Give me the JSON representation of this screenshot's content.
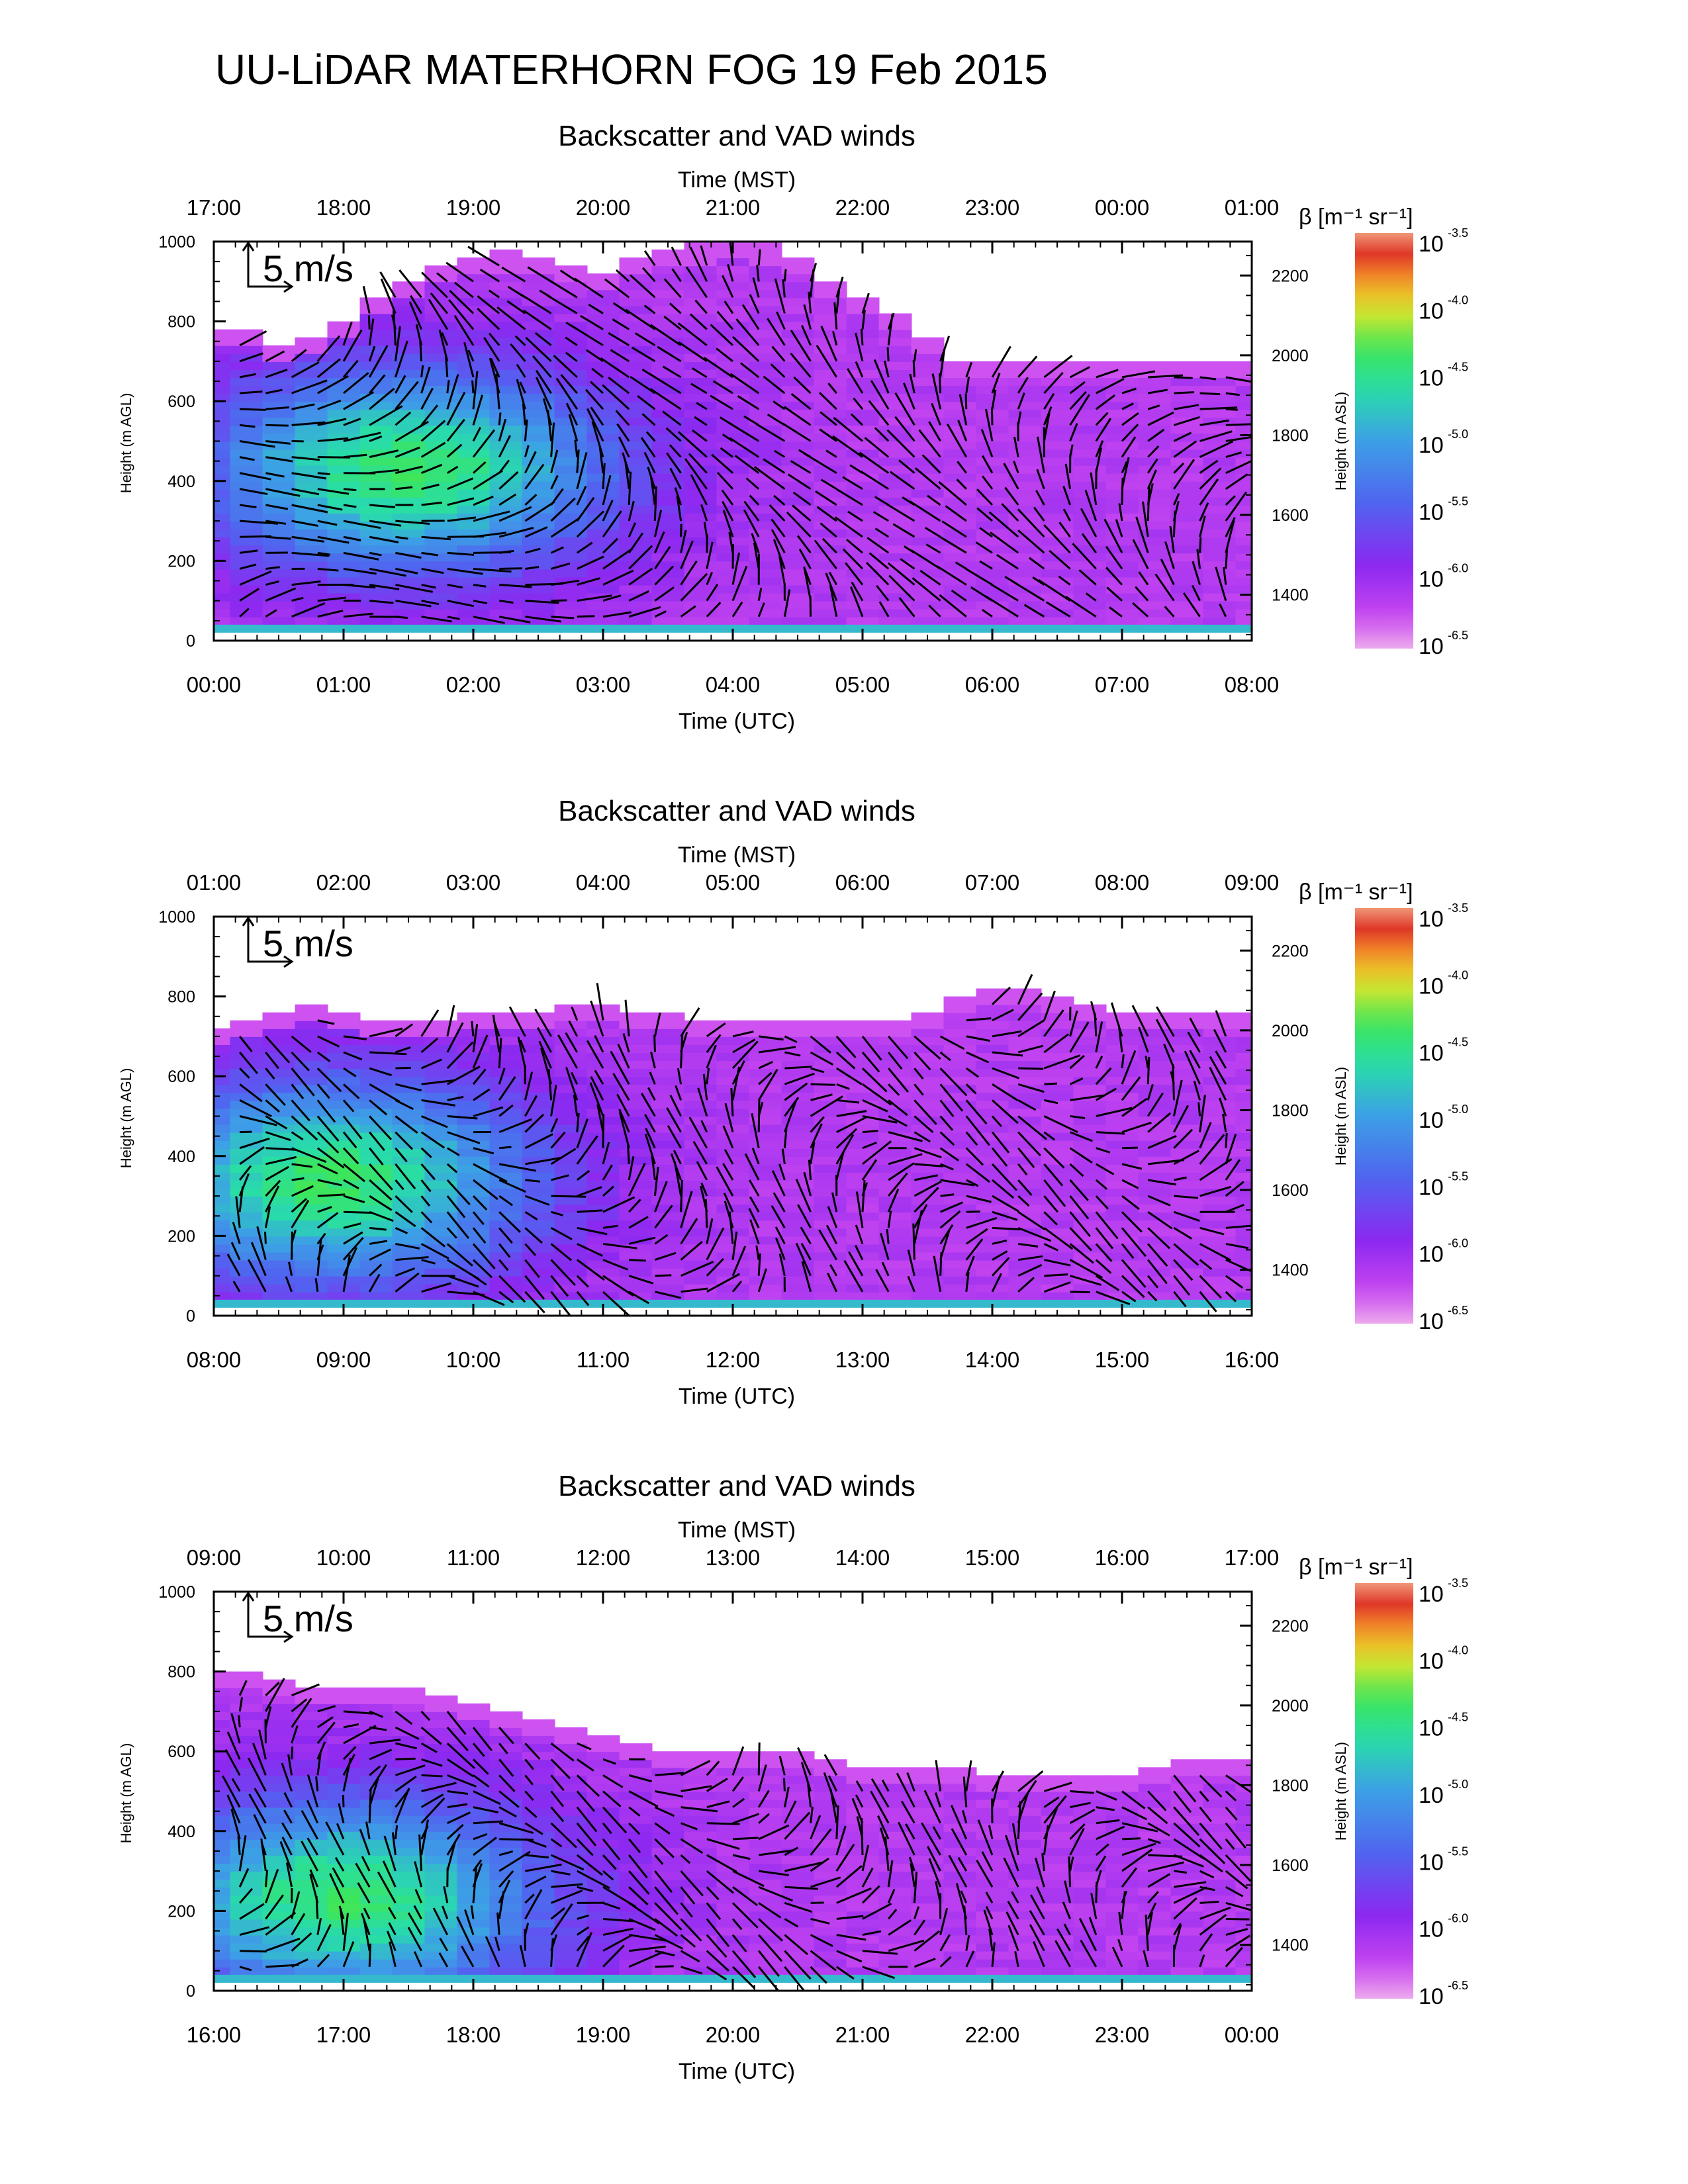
{
  "title": "UU-LiDAR MATERHORN FOG  19 Feb 2015",
  "chart_data": [
    {
      "type": "heatmap",
      "title": "Backscatter and VAD winds",
      "x_top": {
        "label": "Time (MST)",
        "ticks": [
          "17:00",
          "18:00",
          "19:00",
          "20:00",
          "21:00",
          "22:00",
          "23:00",
          "00:00",
          "01:00"
        ]
      },
      "x_bottom": {
        "label": "Time (UTC)",
        "ticks": [
          "00:00",
          "01:00",
          "02:00",
          "03:00",
          "04:00",
          "05:00",
          "06:00",
          "07:00",
          "08:00"
        ],
        "range_hours": [
          0,
          8
        ]
      },
      "y_left": {
        "label": "Height (m AGL)",
        "ticks": [
          0,
          200,
          400,
          600,
          800,
          1000
        ],
        "ylim": [
          0,
          1000
        ]
      },
      "y_right": {
        "label": "Height (m ASL)",
        "ticks": [
          1400,
          1600,
          1800,
          2000,
          2200
        ]
      },
      "reference_vector": "5 m/s",
      "colorbar": {
        "label": "β [m⁻¹ sr⁻¹]",
        "base": "10",
        "exponents": [
          "-3.5",
          "-4.0",
          "-4.5",
          "-5.0",
          "-5.5",
          "-6.0",
          "-6.5"
        ]
      },
      "backscatter_top_m": [
        780,
        780,
        740,
        760,
        800,
        860,
        900,
        940,
        960,
        970,
        960,
        940,
        920,
        960,
        980,
        990,
        1000,
        990,
        960,
        900,
        860,
        820,
        760,
        700,
        700,
        700,
        700,
        700,
        700,
        700,
        700,
        700,
        700
      ],
      "high_backscatter_center": {
        "x_hours": 1.5,
        "y_m": 420
      }
    },
    {
      "type": "heatmap",
      "title": "Backscatter and VAD winds",
      "x_top": {
        "label": "Time (MST)",
        "ticks": [
          "01:00",
          "02:00",
          "03:00",
          "04:00",
          "05:00",
          "06:00",
          "07:00",
          "08:00",
          "09:00"
        ]
      },
      "x_bottom": {
        "label": "Time (UTC)",
        "ticks": [
          "08:00",
          "09:00",
          "10:00",
          "11:00",
          "12:00",
          "13:00",
          "14:00",
          "15:00",
          "16:00"
        ],
        "range_hours": [
          8,
          16
        ]
      },
      "y_left": {
        "label": "Height (m AGL)",
        "ticks": [
          0,
          200,
          400,
          600,
          800,
          1000
        ],
        "ylim": [
          0,
          1000
        ]
      },
      "y_right": {
        "label": "Height (m ASL)",
        "ticks": [
          1400,
          1600,
          1800,
          2000,
          2200
        ]
      },
      "reference_vector": "5 m/s",
      "colorbar": {
        "label": "β [m⁻¹ sr⁻¹]",
        "base": "10",
        "exponents": [
          "-3.5",
          "-4.0",
          "-4.5",
          "-5.0",
          "-5.5",
          "-6.0",
          "-6.5"
        ]
      },
      "backscatter_top_m": [
        720,
        740,
        760,
        780,
        760,
        740,
        740,
        740,
        760,
        760,
        760,
        780,
        780,
        760,
        760,
        740,
        740,
        740,
        740,
        740,
        740,
        740,
        760,
        800,
        820,
        820,
        800,
        780,
        760,
        760,
        760,
        760,
        760
      ],
      "high_backscatter_center": {
        "x_hours": 8.9,
        "y_m": 330
      }
    },
    {
      "type": "heatmap",
      "title": "Backscatter and VAD winds",
      "x_top": {
        "label": "Time (MST)",
        "ticks": [
          "09:00",
          "10:00",
          "11:00",
          "12:00",
          "13:00",
          "14:00",
          "15:00",
          "16:00",
          "17:00"
        ]
      },
      "x_bottom": {
        "label": "Time (UTC)",
        "ticks": [
          "16:00",
          "17:00",
          "18:00",
          "19:00",
          "20:00",
          "21:00",
          "22:00",
          "23:00",
          "00:00"
        ],
        "range_hours": [
          16,
          24
        ]
      },
      "y_left": {
        "label": "Height (m AGL)",
        "ticks": [
          0,
          200,
          400,
          600,
          800,
          1000
        ],
        "ylim": [
          0,
          1000
        ]
      },
      "y_right": {
        "label": "Height (m ASL)",
        "ticks": [
          1400,
          1600,
          1800,
          2000,
          2200
        ]
      },
      "reference_vector": "5 m/s",
      "colorbar": {
        "label": "β [m⁻¹ sr⁻¹]",
        "base": "10",
        "exponents": [
          "-3.5",
          "-4.0",
          "-4.5",
          "-5.0",
          "-5.5",
          "-6.0",
          "-6.5"
        ]
      },
      "backscatter_top_m": [
        800,
        800,
        780,
        760,
        760,
        760,
        760,
        740,
        720,
        700,
        680,
        660,
        640,
        620,
        600,
        600,
        600,
        600,
        600,
        580,
        560,
        560,
        560,
        560,
        540,
        540,
        540,
        540,
        540,
        560,
        580,
        580,
        580
      ],
      "high_backscatter_center": {
        "x_hours": 17.0,
        "y_m": 220
      }
    }
  ]
}
